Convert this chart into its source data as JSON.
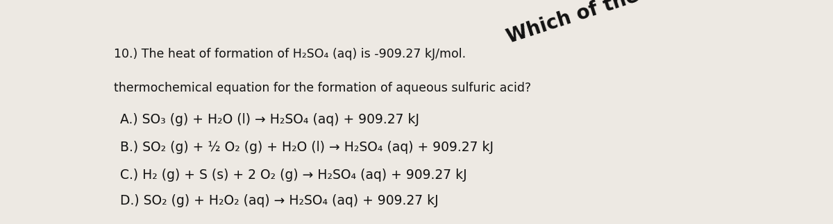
{
  "bg_color": "#ede9e3",
  "text_color": "#111111",
  "title_line1": "10.) The heat of formation of H₂SO₄ (aq) is -909.27 kJ/mol. Which of the following is the",
  "title_line1_plain": "10.) The heat of formation of H₂SO₄ (aq) is -909.27 kJ/mol.",
  "title_line1_bold": "Which of the following is the",
  "title_line2": "thermochemical equation for the formation of aqueous sulfuric acid?",
  "option_A": "A.) SO₃ (g) + H₂O (l) → H₂SO₄ (aq) + 909.27 kJ",
  "option_B": "B.) SO₂ (g) + ½ O₂ (g) + H₂O (l) → H₂SO₄ (aq) + 909.27 kJ",
  "option_C": "C.) H₂ (g) + S (s) + 2 O₂ (g) → H₂SO₄ (aq) + 909.27 kJ",
  "option_D": "D.) SO₂ (g) + H₂O₂ (aq) → H₂SO₄ (aq) + 909.27 kJ",
  "font_size_title": 12.5,
  "font_size_bold": 20,
  "font_size_options": 13.5,
  "fig_width": 12.0,
  "fig_height": 3.23
}
